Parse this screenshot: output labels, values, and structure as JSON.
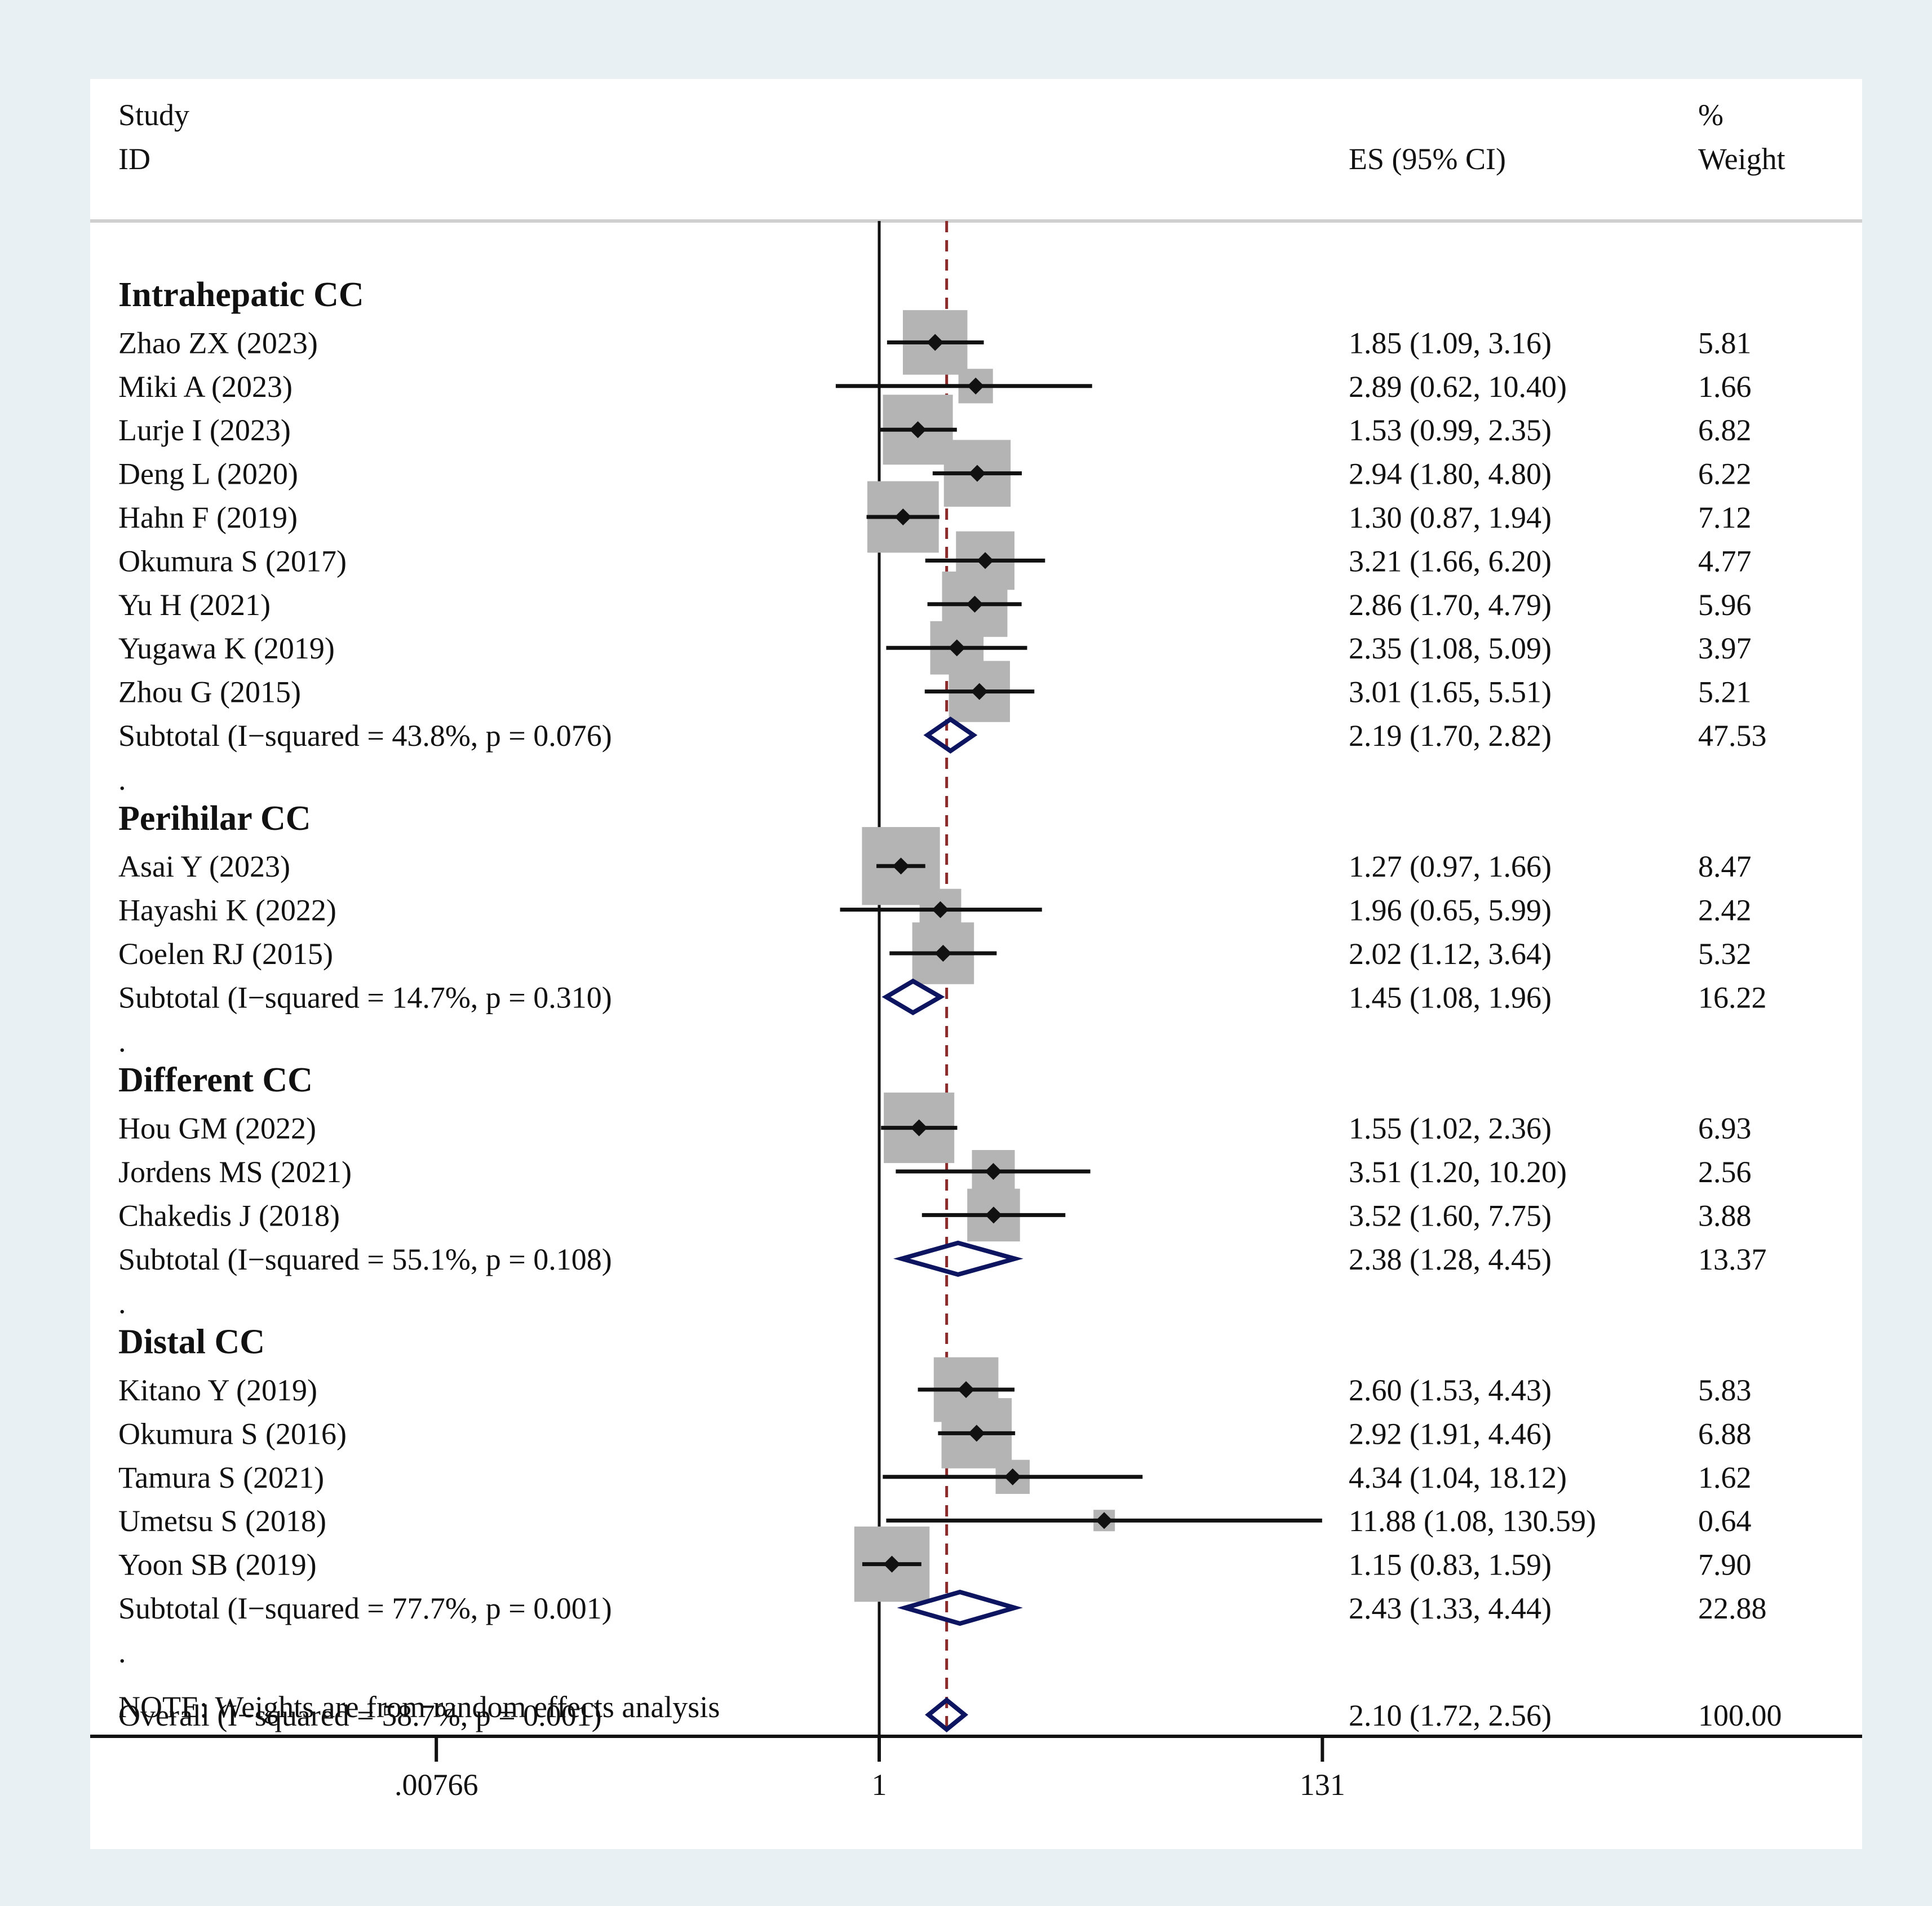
{
  "header": {
    "study_line1": "Study",
    "study_line2": "ID",
    "es_label": "ES (95% CI)",
    "weight_line1": "%",
    "weight_line2": "Weight"
  },
  "note": "NOTE: Weights are from random effects analysis",
  "colors": {
    "study_box": "#b4b4b4",
    "diamond": "#0d1560",
    "reference_line": "#8b2a2a",
    "text": "#111111"
  },
  "chart_data": {
    "type": "forest",
    "scale": "log",
    "null_value": 1,
    "pooled_reference": 2.1,
    "x_ticks": [
      {
        "value": 0.00766,
        "label": ".00766"
      },
      {
        "value": 1,
        "label": "1"
      },
      {
        "value": 131,
        "label": "131"
      }
    ],
    "rows": [
      {
        "kind": "group",
        "label": "Intrahepatic CC"
      },
      {
        "kind": "study",
        "label": "Zhao ZX (2023)",
        "es": 1.85,
        "lo": 1.09,
        "hi": 3.16,
        "ci_text": "1.85 (1.09, 3.16)",
        "weight": 5.81,
        "weight_text": "5.81"
      },
      {
        "kind": "study",
        "label": "Miki A (2023)",
        "es": 2.89,
        "lo": 0.62,
        "hi": 10.4,
        "ci_text": "2.89 (0.62, 10.40)",
        "weight": 1.66,
        "weight_text": "1.66"
      },
      {
        "kind": "study",
        "label": "Lurje I (2023)",
        "es": 1.53,
        "lo": 0.99,
        "hi": 2.35,
        "ci_text": "1.53 (0.99, 2.35)",
        "weight": 6.82,
        "weight_text": "6.82"
      },
      {
        "kind": "study",
        "label": "Deng L (2020)",
        "es": 2.94,
        "lo": 1.8,
        "hi": 4.8,
        "ci_text": "2.94 (1.80, 4.80)",
        "weight": 6.22,
        "weight_text": "6.22"
      },
      {
        "kind": "study",
        "label": "Hahn F (2019)",
        "es": 1.3,
        "lo": 0.87,
        "hi": 1.94,
        "ci_text": "1.30 (0.87, 1.94)",
        "weight": 7.12,
        "weight_text": "7.12"
      },
      {
        "kind": "study",
        "label": "Okumura S (2017)",
        "es": 3.21,
        "lo": 1.66,
        "hi": 6.2,
        "ci_text": "3.21 (1.66, 6.20)",
        "weight": 4.77,
        "weight_text": "4.77"
      },
      {
        "kind": "study",
        "label": "Yu H (2021)",
        "es": 2.86,
        "lo": 1.7,
        "hi": 4.79,
        "ci_text": "2.86 (1.70, 4.79)",
        "weight": 5.96,
        "weight_text": "5.96"
      },
      {
        "kind": "study",
        "label": "Yugawa K (2019)",
        "es": 2.35,
        "lo": 1.08,
        "hi": 5.09,
        "ci_text": "2.35 (1.08, 5.09)",
        "weight": 3.97,
        "weight_text": "3.97"
      },
      {
        "kind": "study",
        "label": "Zhou G (2015)",
        "es": 3.01,
        "lo": 1.65,
        "hi": 5.51,
        "ci_text": "3.01 (1.65, 5.51)",
        "weight": 5.21,
        "weight_text": "5.21"
      },
      {
        "kind": "subtotal",
        "label": "Subtotal  (I−squared = 43.8%, p = 0.076)",
        "es": 2.19,
        "lo": 1.7,
        "hi": 2.82,
        "ci_text": "2.19 (1.70, 2.82)",
        "weight_text": "47.53"
      },
      {
        "kind": "spacer",
        "label": "."
      },
      {
        "kind": "group",
        "label": "Perihilar CC"
      },
      {
        "kind": "study",
        "label": "Asai Y (2023)",
        "es": 1.27,
        "lo": 0.97,
        "hi": 1.66,
        "ci_text": "1.27 (0.97, 1.66)",
        "weight": 8.47,
        "weight_text": "8.47"
      },
      {
        "kind": "study",
        "label": "Hayashi K (2022)",
        "es": 1.96,
        "lo": 0.65,
        "hi": 5.99,
        "ci_text": "1.96 (0.65, 5.99)",
        "weight": 2.42,
        "weight_text": "2.42"
      },
      {
        "kind": "study",
        "label": "Coelen RJ (2015)",
        "es": 2.02,
        "lo": 1.12,
        "hi": 3.64,
        "ci_text": "2.02 (1.12, 3.64)",
        "weight": 5.32,
        "weight_text": "5.32"
      },
      {
        "kind": "subtotal",
        "label": "Subtotal  (I−squared = 14.7%, p = 0.310)",
        "es": 1.45,
        "lo": 1.08,
        "hi": 1.96,
        "ci_text": "1.45 (1.08, 1.96)",
        "weight_text": "16.22"
      },
      {
        "kind": "spacer",
        "label": "."
      },
      {
        "kind": "group",
        "label": "Different CC"
      },
      {
        "kind": "study",
        "label": "Hou GM (2022)",
        "es": 1.55,
        "lo": 1.02,
        "hi": 2.36,
        "ci_text": "1.55 (1.02, 2.36)",
        "weight": 6.93,
        "weight_text": "6.93"
      },
      {
        "kind": "study",
        "label": "Jordens MS (2021)",
        "es": 3.51,
        "lo": 1.2,
        "hi": 10.2,
        "ci_text": "3.51 (1.20, 10.20)",
        "weight": 2.56,
        "weight_text": "2.56"
      },
      {
        "kind": "study",
        "label": "Chakedis J (2018)",
        "es": 3.52,
        "lo": 1.6,
        "hi": 7.75,
        "ci_text": "3.52 (1.60, 7.75)",
        "weight": 3.88,
        "weight_text": "3.88"
      },
      {
        "kind": "subtotal",
        "label": "Subtotal  (I−squared = 55.1%, p = 0.108)",
        "es": 2.38,
        "lo": 1.28,
        "hi": 4.45,
        "ci_text": "2.38 (1.28, 4.45)",
        "weight_text": "13.37"
      },
      {
        "kind": "spacer",
        "label": "."
      },
      {
        "kind": "group",
        "label": "Distal CC"
      },
      {
        "kind": "study",
        "label": "Kitano Y (2019)",
        "es": 2.6,
        "lo": 1.53,
        "hi": 4.43,
        "ci_text": "2.60 (1.53, 4.43)",
        "weight": 5.83,
        "weight_text": "5.83"
      },
      {
        "kind": "study",
        "label": "Okumura S (2016)",
        "es": 2.92,
        "lo": 1.91,
        "hi": 4.46,
        "ci_text": "2.92 (1.91, 4.46)",
        "weight": 6.88,
        "weight_text": "6.88"
      },
      {
        "kind": "study",
        "label": "Tamura S (2021)",
        "es": 4.34,
        "lo": 1.04,
        "hi": 18.12,
        "ci_text": "4.34 (1.04, 18.12)",
        "weight": 1.62,
        "weight_text": "1.62"
      },
      {
        "kind": "study",
        "label": "Umetsu S (2018)",
        "es": 11.88,
        "lo": 1.08,
        "hi": 130.59,
        "ci_text": "11.88 (1.08, 130.59)",
        "weight": 0.64,
        "weight_text": "0.64"
      },
      {
        "kind": "study",
        "label": "Yoon SB (2019)",
        "es": 1.15,
        "lo": 0.83,
        "hi": 1.59,
        "ci_text": "1.15 (0.83, 1.59)",
        "weight": 7.9,
        "weight_text": "7.90"
      },
      {
        "kind": "subtotal",
        "label": "Subtotal  (I−squared = 77.7%, p = 0.001)",
        "es": 2.43,
        "lo": 1.33,
        "hi": 4.44,
        "ci_text": "2.43 (1.33, 4.44)",
        "weight_text": "22.88"
      },
      {
        "kind": "spacer",
        "label": "."
      },
      {
        "kind": "overall",
        "label": "Overall  (I−squared = 58.7%, p = 0.001)",
        "es": 2.1,
        "lo": 1.72,
        "hi": 2.56,
        "ci_text": "2.10 (1.72, 2.56)",
        "weight_text": "100.00"
      }
    ]
  }
}
